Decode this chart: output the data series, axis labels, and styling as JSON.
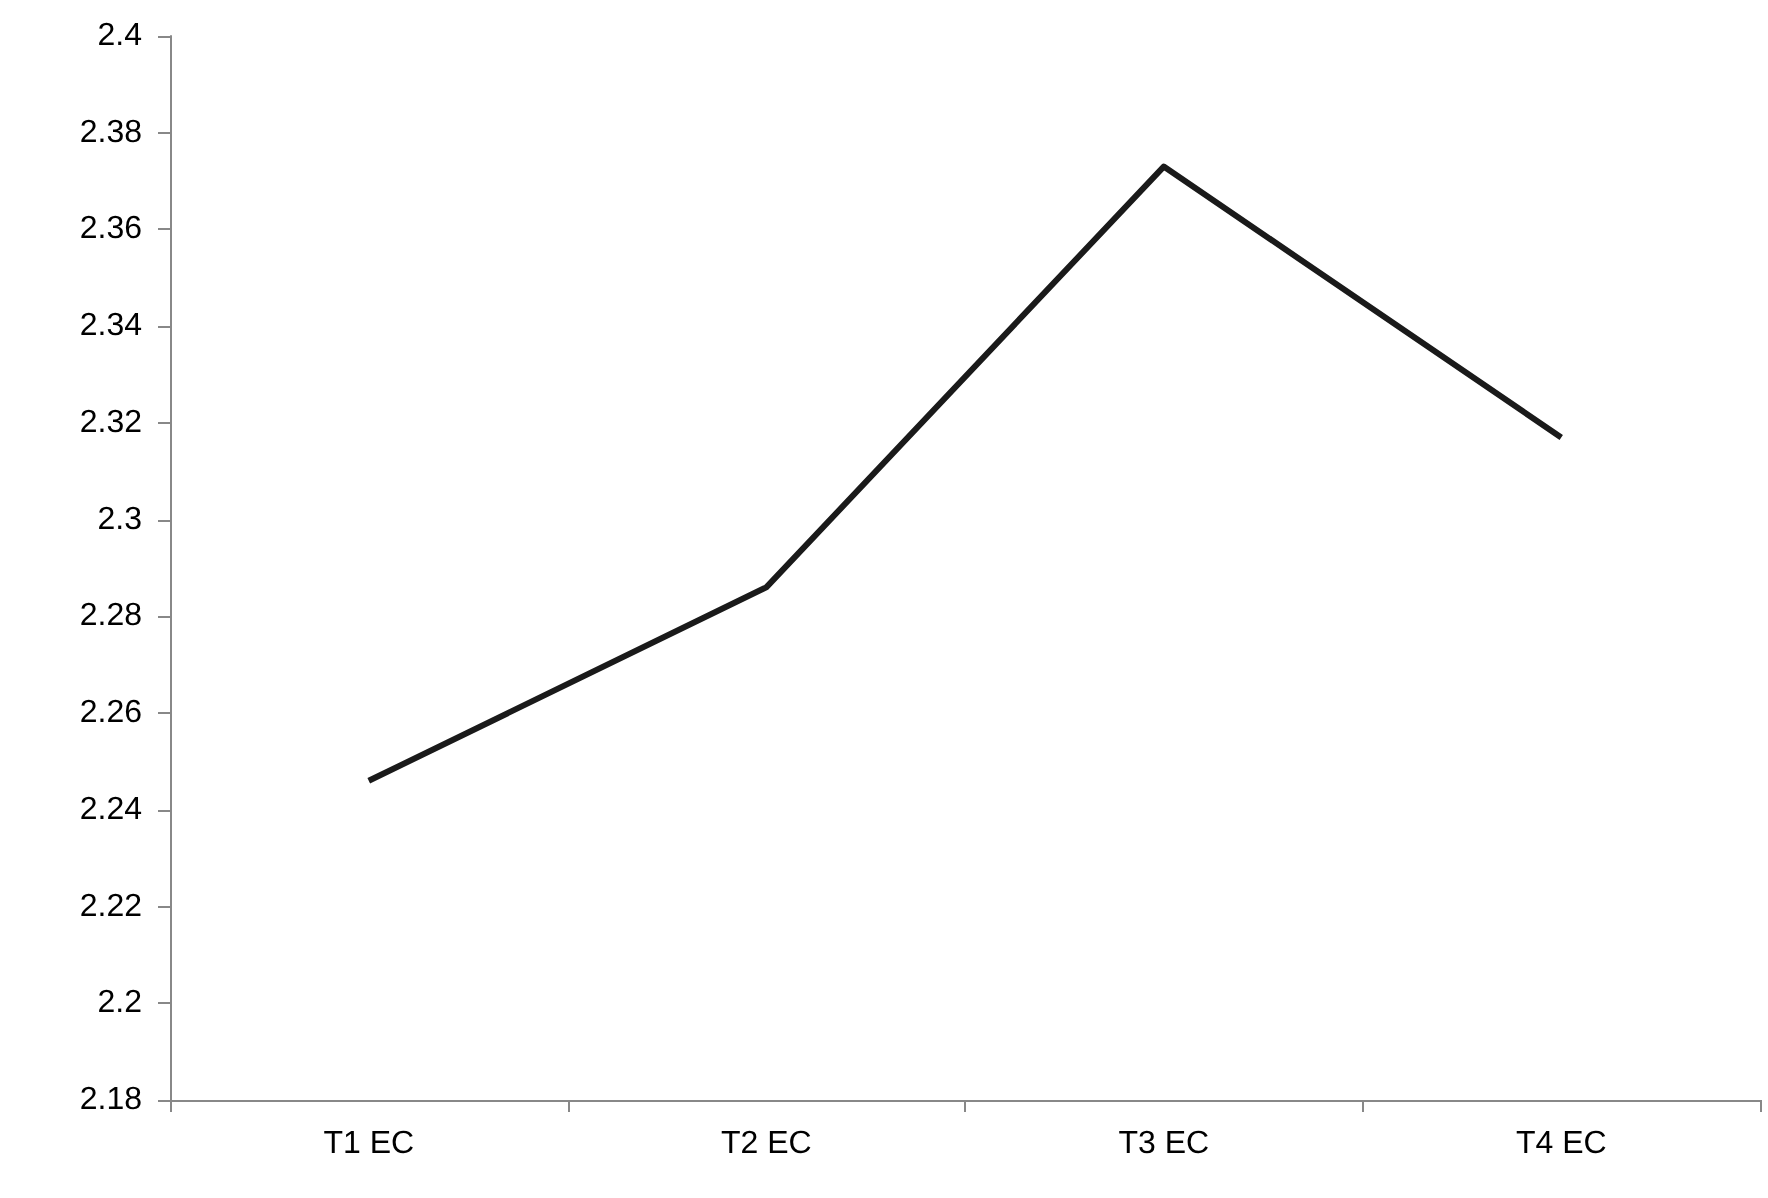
{
  "chart_data": {
    "type": "line",
    "categories": [
      "T1 EC",
      "T2 EC",
      "T3 EC",
      "T4 EC"
    ],
    "series": [
      {
        "color": "#1a1a1a",
        "values": [
          2.246,
          2.286,
          2.373,
          2.317
        ]
      }
    ],
    "ylim": [
      2.18,
      2.4
    ],
    "yticks": [
      2.18,
      2.2,
      2.22,
      2.24,
      2.26,
      2.28,
      2.3,
      2.32,
      2.34,
      2.36,
      2.38,
      2.4
    ],
    "marker": "none",
    "line_style": "solid"
  }
}
